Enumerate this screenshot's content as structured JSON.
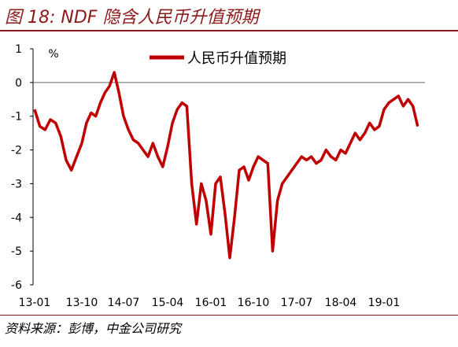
{
  "figure": {
    "title": "图 18: NDF 隐含人民币升值预期",
    "source": "资料来源：彭博，中金公司研究"
  },
  "chart_data": {
    "type": "line",
    "unit_label": "%",
    "ylim": [
      -6,
      1
    ],
    "yticks": [
      1,
      0,
      -1,
      -2,
      -3,
      -4,
      -5,
      -6
    ],
    "xtick_labels": [
      "13-01",
      "13-10",
      "14-07",
      "15-04",
      "16-01",
      "16-10",
      "17-07",
      "18-04",
      "19-01"
    ],
    "grid": false,
    "legend_position": "top-center",
    "series": [
      {
        "name": "人民币升值预期",
        "color": "#c00000",
        "points": [
          [
            "2013-01",
            -0.8
          ],
          [
            "2013-02",
            -1.3
          ],
          [
            "2013-03",
            -1.4
          ],
          [
            "2013-04",
            -1.1
          ],
          [
            "2013-05",
            -1.2
          ],
          [
            "2013-06",
            -1.6
          ],
          [
            "2013-07",
            -2.3
          ],
          [
            "2013-08",
            -2.6
          ],
          [
            "2013-09",
            -2.2
          ],
          [
            "2013-10",
            -1.8
          ],
          [
            "2013-11",
            -1.2
          ],
          [
            "2013-12",
            -0.9
          ],
          [
            "2014-01",
            -1.0
          ],
          [
            "2014-02",
            -0.6
          ],
          [
            "2014-03",
            -0.3
          ],
          [
            "2014-04",
            -0.1
          ],
          [
            "2014-05",
            0.3
          ],
          [
            "2014-06",
            -0.3
          ],
          [
            "2014-07",
            -1.0
          ],
          [
            "2014-08",
            -1.4
          ],
          [
            "2014-09",
            -1.7
          ],
          [
            "2014-10",
            -1.8
          ],
          [
            "2014-11",
            -2.0
          ],
          [
            "2014-12",
            -2.2
          ],
          [
            "2015-01",
            -1.8
          ],
          [
            "2015-02",
            -2.2
          ],
          [
            "2015-03",
            -2.5
          ],
          [
            "2015-04",
            -1.9
          ],
          [
            "2015-05",
            -1.2
          ],
          [
            "2015-06",
            -0.8
          ],
          [
            "2015-07",
            -0.6
          ],
          [
            "2015-08",
            -0.7
          ],
          [
            "2015-09",
            -3.0
          ],
          [
            "2015-10",
            -4.2
          ],
          [
            "2015-11",
            -3.0
          ],
          [
            "2015-12",
            -3.5
          ],
          [
            "2016-01",
            -4.5
          ],
          [
            "2016-02",
            -3.0
          ],
          [
            "2016-03",
            -2.8
          ],
          [
            "2016-04",
            -3.9
          ],
          [
            "2016-05",
            -5.2
          ],
          [
            "2016-06",
            -4.0
          ],
          [
            "2016-07",
            -2.6
          ],
          [
            "2016-08",
            -2.5
          ],
          [
            "2016-09",
            -2.9
          ],
          [
            "2016-10",
            -2.5
          ],
          [
            "2016-11",
            -2.2
          ],
          [
            "2016-12",
            -2.3
          ],
          [
            "2017-01",
            -2.4
          ],
          [
            "2017-02",
            -5.0
          ],
          [
            "2017-03",
            -3.5
          ],
          [
            "2017-04",
            -3.0
          ],
          [
            "2017-05",
            -2.8
          ],
          [
            "2017-06",
            -2.6
          ],
          [
            "2017-07",
            -2.4
          ],
          [
            "2017-08",
            -2.2
          ],
          [
            "2017-09",
            -2.3
          ],
          [
            "2017-10",
            -2.2
          ],
          [
            "2017-11",
            -2.4
          ],
          [
            "2017-12",
            -2.3
          ],
          [
            "2018-01",
            -2.0
          ],
          [
            "2018-02",
            -2.2
          ],
          [
            "2018-03",
            -2.3
          ],
          [
            "2018-04",
            -2.0
          ],
          [
            "2018-05",
            -2.1
          ],
          [
            "2018-06",
            -1.8
          ],
          [
            "2018-07",
            -1.5
          ],
          [
            "2018-08",
            -1.7
          ],
          [
            "2018-09",
            -1.5
          ],
          [
            "2018-10",
            -1.2
          ],
          [
            "2018-11",
            -1.4
          ],
          [
            "2018-12",
            -1.3
          ],
          [
            "2019-01",
            -0.8
          ],
          [
            "2019-02",
            -0.6
          ],
          [
            "2019-03",
            -0.5
          ],
          [
            "2019-04",
            -0.4
          ],
          [
            "2019-05",
            -0.7
          ],
          [
            "2019-06",
            -0.5
          ],
          [
            "2019-07",
            -0.7
          ],
          [
            "2019-08",
            -1.3
          ]
        ]
      }
    ]
  }
}
